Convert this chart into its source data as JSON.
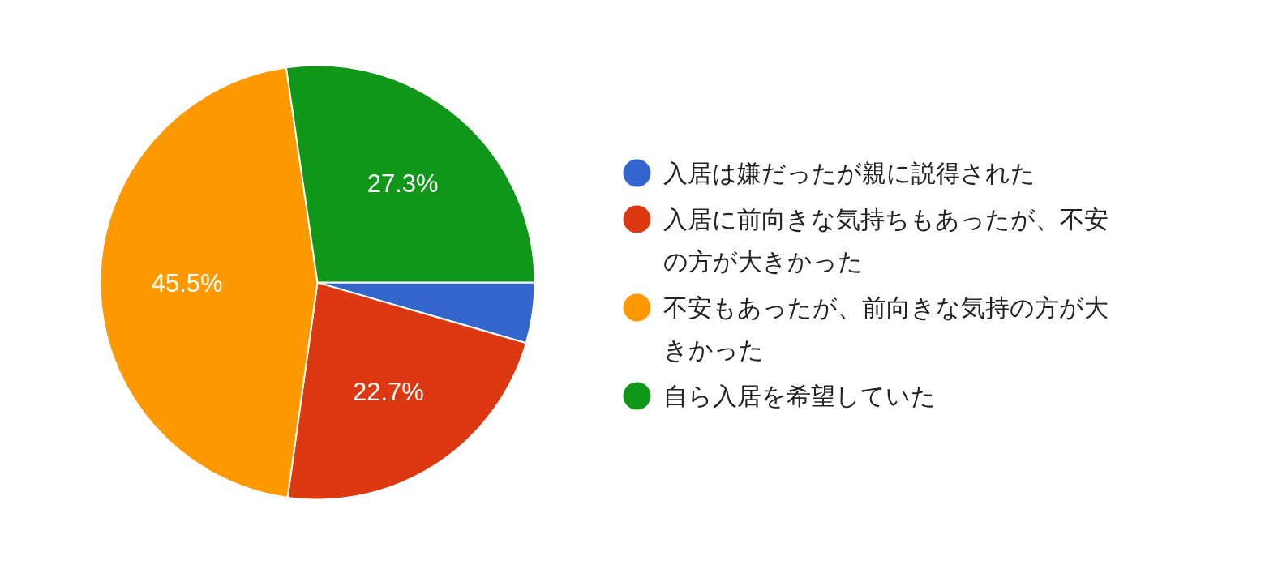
{
  "chart_data": {
    "type": "pie",
    "categories": [
      "入居は嫌だったが親に説得された",
      "入居に前向きな気持ちもあったが、不安の方が大きかった",
      "不安もあったが、前向きな気持の方が大きかった",
      "自ら入居を希望していた"
    ],
    "values": [
      4.5,
      22.7,
      45.5,
      27.3
    ],
    "colors": [
      "#3366cc",
      "#dc3912",
      "#ff9900",
      "#109618"
    ],
    "value_labels": [
      null,
      "22.7%",
      "45.5%",
      "27.3%"
    ],
    "legend": "right"
  }
}
